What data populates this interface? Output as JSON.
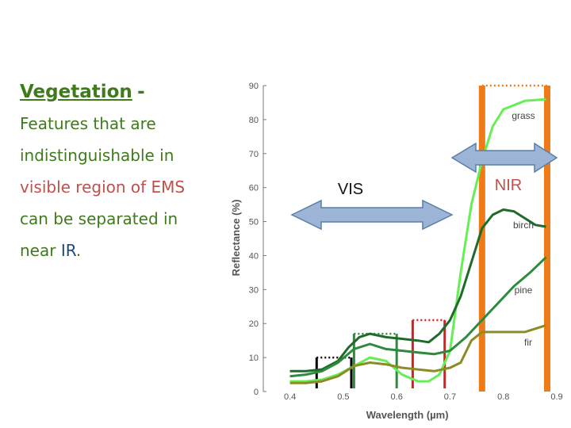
{
  "slide": {
    "title_word": "Vegetation",
    "title_dash": "-",
    "line1": "Features that are",
    "line2": "indistinguishable in",
    "line3_part1": "visible region of",
    "line3_part2": "EMS",
    "line4": "can be separated in",
    "line5_part1": "near",
    "line5_part2": "IR",
    "line5_part3": "."
  },
  "colors": {
    "text_green": "#3f7a1c",
    "text_red": "#c0504d",
    "text_blue": "#1f497d",
    "grass": "#66ee55",
    "birch": "#1f6b2a",
    "pine": "#2e8b3d",
    "fir": "#8c8c26",
    "nir_band": "#ee7a18",
    "arrow_fill": "#9cb5d6",
    "arrow_stroke": "#5b7fa6"
  },
  "chart_data": {
    "type": "line",
    "xlabel": "Wavelength (µm)",
    "ylabel": "Reflectance (%)",
    "xlim": [
      0.35,
      0.9
    ],
    "ylim": [
      0,
      90
    ],
    "xticks": [
      "0.4",
      "0.5",
      "0.6",
      "0.7",
      "0.8",
      "0.9"
    ],
    "yticks": [
      "0",
      "10",
      "20",
      "30",
      "40",
      "50",
      "60",
      "70",
      "80",
      "90"
    ],
    "series": [
      {
        "name": "grass",
        "color": "#66ee55",
        "x": [
          0.4,
          0.43,
          0.46,
          0.49,
          0.52,
          0.55,
          0.58,
          0.61,
          0.64,
          0.66,
          0.68,
          0.7,
          0.72,
          0.74,
          0.76,
          0.78,
          0.8,
          0.84,
          0.88
        ],
        "y": [
          3,
          3,
          3.5,
          5,
          7.5,
          10,
          9,
          5,
          3,
          3,
          5,
          12,
          35,
          55,
          68,
          78,
          83,
          85.5,
          86
        ]
      },
      {
        "name": "birch",
        "color": "#1f6b2a",
        "x": [
          0.4,
          0.43,
          0.46,
          0.49,
          0.51,
          0.53,
          0.55,
          0.58,
          0.61,
          0.64,
          0.66,
          0.68,
          0.7,
          0.72,
          0.74,
          0.76,
          0.78,
          0.8,
          0.82,
          0.84,
          0.86,
          0.88
        ],
        "y": [
          6,
          6,
          6.5,
          9,
          13,
          16,
          17,
          16,
          15.5,
          15,
          14.5,
          17,
          21,
          28,
          38,
          48,
          52,
          53.5,
          53,
          51,
          49,
          48.5
        ]
      },
      {
        "name": "pine",
        "color": "#2e8b3d",
        "x": [
          0.4,
          0.43,
          0.46,
          0.49,
          0.52,
          0.55,
          0.58,
          0.61,
          0.64,
          0.67,
          0.7,
          0.73,
          0.76,
          0.79,
          0.82,
          0.85,
          0.88
        ],
        "y": [
          4.5,
          5,
          6,
          8.5,
          12.5,
          14,
          12.5,
          12,
          11.5,
          11,
          12,
          16,
          21,
          26,
          31,
          35,
          39.5
        ]
      },
      {
        "name": "fir",
        "color": "#8c8c26",
        "x": [
          0.4,
          0.43,
          0.46,
          0.49,
          0.52,
          0.55,
          0.58,
          0.61,
          0.64,
          0.67,
          0.7,
          0.72,
          0.74,
          0.76,
          0.78,
          0.8,
          0.82,
          0.84,
          0.86,
          0.88
        ],
        "y": [
          2.5,
          2.5,
          3,
          4.5,
          7.5,
          8.5,
          8,
          7,
          6.5,
          6,
          7,
          8.5,
          15,
          17.5,
          17.5,
          17.5,
          17.5,
          17.5,
          18.5,
          19.5
        ]
      }
    ],
    "bands": [
      {
        "color": "#000000",
        "x0": 0.45,
        "x1": 0.515,
        "top": 10
      },
      {
        "color": "#2e8b3d",
        "x0": 0.52,
        "x1": 0.6,
        "top": 17
      },
      {
        "color": "#d62020",
        "x0": 0.63,
        "x1": 0.69,
        "top": 21
      }
    ],
    "nir_band": {
      "x0": 0.76,
      "x1": 0.9,
      "top": 90
    },
    "vis_label": "VIS",
    "nir_label": "NIR"
  }
}
